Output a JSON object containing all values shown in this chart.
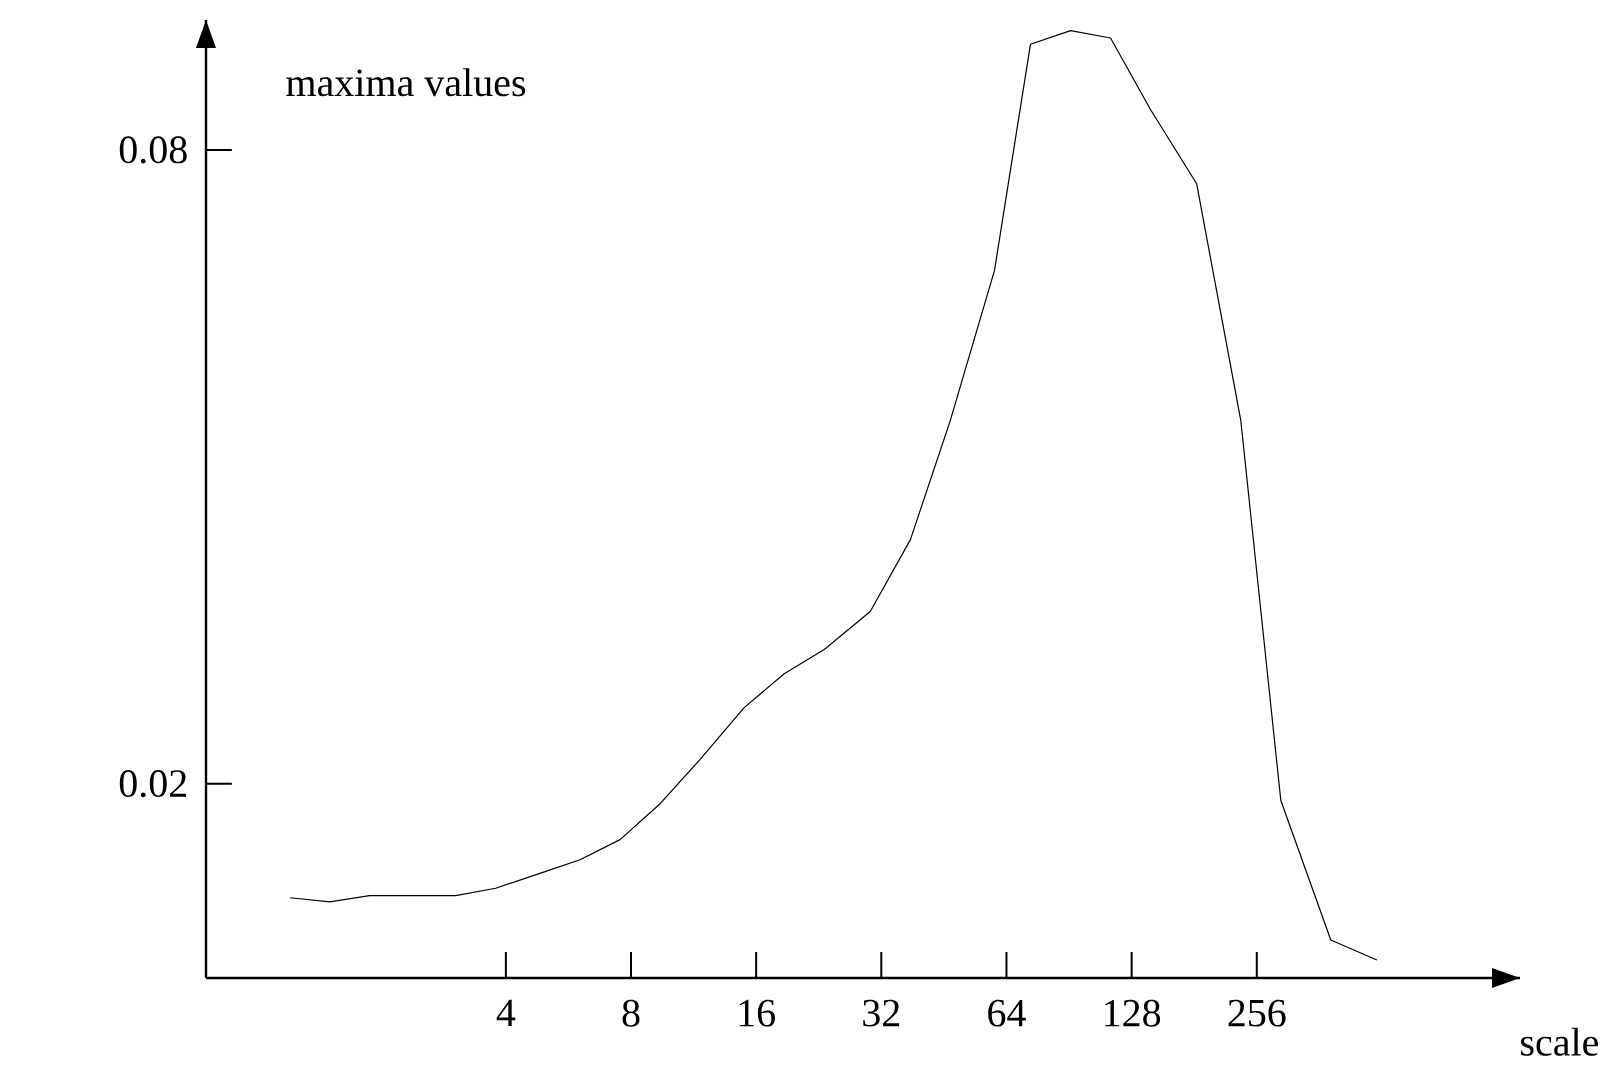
{
  "chart_data": {
    "type": "line",
    "xlabel": "scale",
    "ylabel": "maxima values",
    "log": "x",
    "color": "#000000",
    "x": [
      1.21,
      1.51,
      1.88,
      3.03,
      3.78,
      4.83,
      6.03,
      7.53,
      9.4,
      11.73,
      14.97,
      18.69,
      23.33,
      30.1,
      37.6,
      46.9,
      59.9,
      73.1,
      91.3,
      113.9,
      142.2,
      183.5,
      234.3,
      292.5,
      385.8,
      498
    ],
    "values": [
      0.0092,
      0.0088,
      0.0094,
      0.0094,
      0.0101,
      0.0115,
      0.0128,
      0.0147,
      0.0181,
      0.0223,
      0.0272,
      0.0304,
      0.0327,
      0.0363,
      0.0431,
      0.0544,
      0.0686,
      0.09,
      0.0913,
      0.0906,
      0.0838,
      0.0768,
      0.0544,
      0.0184,
      0.0052,
      0.0033
    ],
    "xlim": [
      0.76,
      1100
    ],
    "ylim": [
      0.0016,
      0.0923
    ],
    "xticks": [
      4,
      8,
      16,
      32,
      64,
      128,
      256
    ],
    "yticks": [
      0.02,
      0.08
    ]
  }
}
